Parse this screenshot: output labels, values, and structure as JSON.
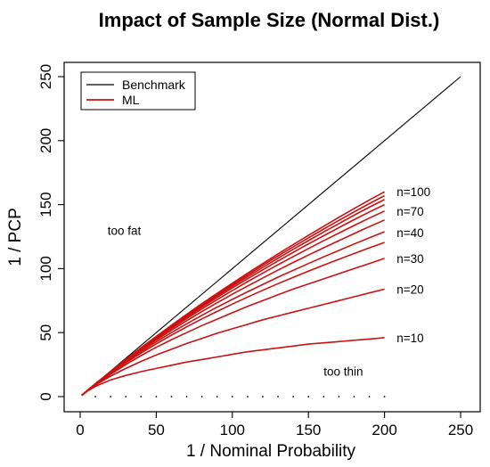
{
  "chart_data": {
    "type": "line",
    "title": "Impact of Sample Size (Normal Dist.)",
    "xlabel": "1 / Nominal Probability",
    "ylabel": "1 / PCP",
    "xlim": [
      0,
      250
    ],
    "ylim": [
      0,
      250
    ],
    "xticks": [
      0,
      50,
      100,
      150,
      200,
      250
    ],
    "yticks": [
      0,
      50,
      100,
      150,
      200,
      250
    ],
    "grid": false,
    "legend": {
      "placement": "top-left",
      "entries": [
        {
          "label": "Benchmark",
          "color": "#000000"
        },
        {
          "label": "ML",
          "color": "#cc1111"
        }
      ]
    },
    "x": [
      1,
      5,
      10,
      20,
      30,
      40,
      50,
      60,
      70,
      80,
      90,
      100,
      110,
      120,
      130,
      140,
      150,
      160,
      170,
      180,
      190,
      200
    ],
    "series": [
      {
        "role": "benchmark",
        "color": "#000000",
        "x": [
          1,
          250
        ],
        "values": [
          1,
          250
        ]
      },
      {
        "name": "n=10",
        "color": "#cc1111",
        "values": [
          1,
          4.5,
          8,
          13,
          16.5,
          19.5,
          22,
          24.5,
          27,
          29,
          31,
          33,
          35,
          36.5,
          38,
          39.5,
          41,
          42,
          43,
          44,
          45,
          46
        ]
      },
      {
        "name": "n=20",
        "color": "#cc1111",
        "values": [
          1,
          5,
          9,
          16,
          22,
          27.5,
          32.5,
          37,
          41.5,
          45.5,
          49.5,
          53,
          56.5,
          60,
          63,
          66,
          69,
          72,
          75,
          78,
          81,
          84
        ]
      },
      {
        "name": "n=30",
        "color": "#cc1111",
        "values": [
          1,
          5,
          9.5,
          17.5,
          25,
          32,
          38.5,
          44.5,
          50,
          55.5,
          60.5,
          65.5,
          70.5,
          75,
          79.5,
          84,
          88,
          92,
          96,
          100,
          104,
          108
        ]
      },
      {
        "series_index": 4,
        "color": "#cc1111",
        "values": [
          1,
          5,
          9.7,
          18.3,
          26.4,
          34,
          41.2,
          48,
          54.5,
          60.7,
          66.6,
          72.3,
          77.8,
          83.1,
          88.2,
          93.2,
          98,
          102.7,
          107.3,
          111.8,
          116.2,
          120.5
        ]
      },
      {
        "name": "n=40",
        "color": "#cc1111",
        "values": [
          1,
          5,
          9.8,
          18.8,
          27.2,
          35.2,
          42.8,
          50,
          56.9,
          63.5,
          69.9,
          76,
          81.9,
          87.7,
          93.3,
          98.7,
          104,
          109.2,
          114.2,
          119.2,
          124,
          128.8
        ]
      },
      {
        "series_index": 6,
        "color": "#cc1111",
        "values": [
          1,
          5,
          9.8,
          19,
          27.8,
          36.2,
          44.2,
          51.9,
          59.3,
          66.4,
          73.3,
          80,
          86.4,
          92.7,
          98.8,
          104.8,
          110.6,
          116.3,
          121.9,
          127.4,
          132.8,
          138
        ]
      },
      {
        "name": "n=70",
        "color": "#cc1111",
        "values": [
          1,
          5,
          9.9,
          19.2,
          28.2,
          36.9,
          45.2,
          53.2,
          61,
          68.5,
          75.8,
          82.9,
          89.8,
          96.5,
          103,
          109.4,
          115.7,
          121.8,
          127.8,
          133.7,
          139.5,
          145
        ]
      },
      {
        "series_index": 8,
        "color": "#cc1111",
        "values": [
          1,
          5,
          9.9,
          19.4,
          28.5,
          37.3,
          45.8,
          54.1,
          62.1,
          69.9,
          77.5,
          84.9,
          92.1,
          99.1,
          106,
          112.7,
          119.3,
          125.7,
          132,
          138.2,
          144.3,
          150
        ]
      },
      {
        "series_index": 9,
        "color": "#cc1111",
        "values": [
          1,
          5,
          9.9,
          19.5,
          28.7,
          37.6,
          46.3,
          54.7,
          62.9,
          70.9,
          78.7,
          86.3,
          93.7,
          101,
          108.1,
          115.1,
          121.9,
          128.6,
          135.2,
          141.7,
          148,
          154
        ]
      },
      {
        "series_index": 10,
        "color": "#cc1111",
        "values": [
          1,
          5,
          10,
          19.6,
          28.9,
          37.9,
          46.7,
          55.3,
          63.6,
          71.8,
          79.7,
          87.5,
          95.1,
          102.6,
          109.9,
          117,
          124,
          130.9,
          137.7,
          144.3,
          150.8,
          157
        ]
      },
      {
        "name": "n=100",
        "color": "#cc1111",
        "values": [
          1,
          5,
          10,
          19.7,
          29.1,
          38.2,
          47.1,
          55.8,
          64.3,
          72.6,
          80.7,
          88.6,
          96.4,
          104,
          111.5,
          118.8,
          126,
          133.1,
          140.1,
          146.9,
          153.6,
          160
        ]
      }
    ],
    "annotations": [
      {
        "text": "too fat",
        "x": 18,
        "y": 130
      },
      {
        "text": "too thin",
        "x": 160,
        "y": 20
      },
      {
        "text": "n=100",
        "x": 208,
        "y": 160
      },
      {
        "text": "n=70",
        "x": 208,
        "y": 145
      },
      {
        "text": "n=40",
        "x": 208,
        "y": 128
      },
      {
        "text": "n=30",
        "x": 208,
        "y": 108
      },
      {
        "text": "n=20",
        "x": 208,
        "y": 84
      },
      {
        "text": "n=10",
        "x": 208,
        "y": 46
      }
    ],
    "baseline_dots_x": [
      10,
      20,
      30,
      40,
      50,
      60,
      70,
      80,
      90,
      100,
      110,
      120,
      130,
      140,
      150,
      160,
      170,
      180,
      190,
      200
    ]
  }
}
